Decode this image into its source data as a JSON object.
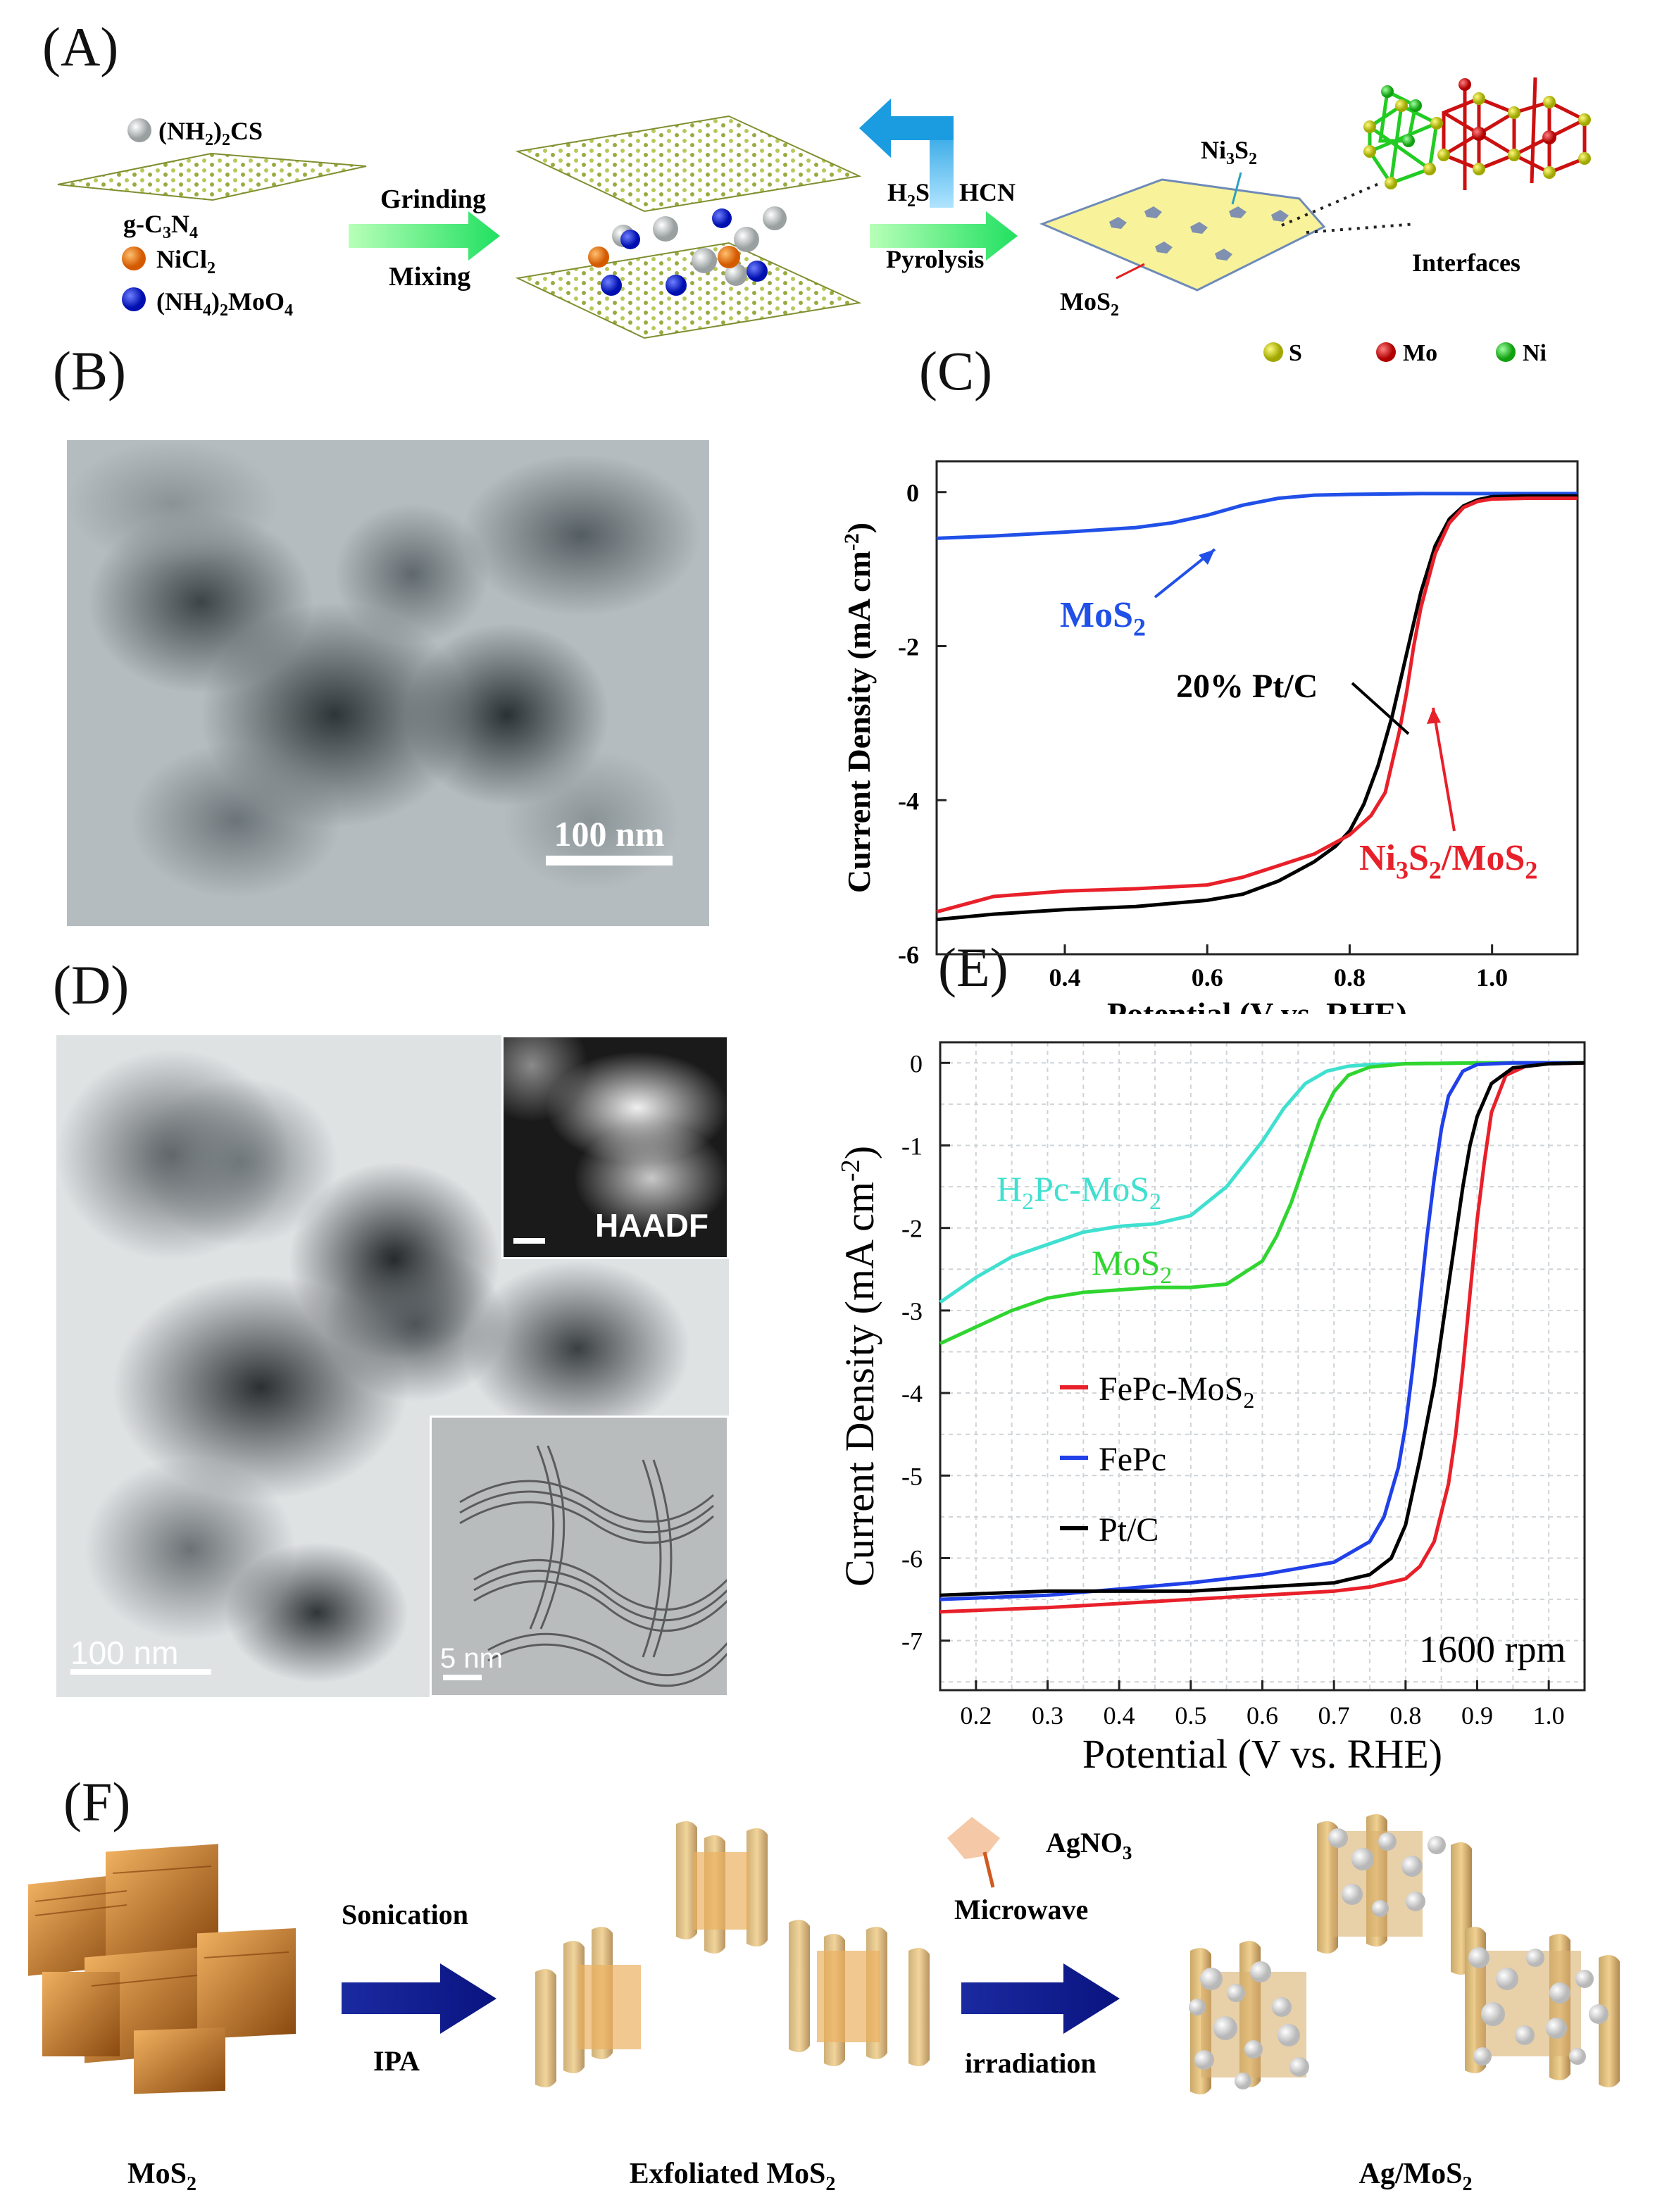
{
  "panels": {
    "A": "(A)",
    "B": "(B)",
    "C": "(C)",
    "D": "(D)",
    "E": "(E)",
    "F": "(F)"
  },
  "panelA": {
    "reagents": [
      "(NH",
      "2",
      ")",
      "2",
      "CS"
    ],
    "gc3n4": [
      "g-C",
      "3",
      "N",
      "4"
    ],
    "nicl2": [
      "NiCl",
      "2"
    ],
    "nh4moo4": [
      "(NH",
      "4",
      ")",
      "2",
      "MoO",
      "4"
    ],
    "step1_top": "Grinding",
    "step1_bottom": "Mixing",
    "h2s": [
      "H",
      "2",
      "S"
    ],
    "hcn": "HCN",
    "step2_bottom": "Pyrolysis",
    "ni3s2": [
      "Ni",
      "3",
      "S",
      "2"
    ],
    "mos2": [
      "MoS",
      "2"
    ],
    "interfaces": "Interfaces",
    "legend": [
      {
        "label": "S",
        "color": "#c8d400"
      },
      {
        "label": "Mo",
        "color": "#d01010"
      },
      {
        "label": "Ni",
        "color": "#22cc22"
      }
    ]
  },
  "panelB": {
    "scalebar": "100 nm"
  },
  "panelC": {
    "xlabel": "Potential (V vs. RHE)",
    "ylabel": "Current Density (mA cm",
    "ylabel_sup": "-2",
    "ylabel_end": ")",
    "labels": {
      "mos2": [
        "MoS",
        "2"
      ],
      "ptc": "20% Pt/C",
      "ni3s2mos2": [
        "Ni",
        "3",
        "S",
        "2",
        "/MoS",
        "2"
      ]
    }
  },
  "panelD": {
    "scalebar_main": "100 nm",
    "scalebar_inset": "5 nm",
    "inset_label": "HAADF"
  },
  "panelE": {
    "xlabel": "Potential (V vs. RHE)",
    "ylabel": "Current Density (mA cm",
    "ylabel_sup": "-2",
    "ylabel_end": ")",
    "rpm": "1600 rpm",
    "labels": {
      "h2pc": [
        "H",
        "2",
        "Pc-MoS",
        "2"
      ],
      "mos2": [
        "MoS",
        "2"
      ]
    },
    "legend": [
      {
        "label": [
          "FePc-MoS",
          "2"
        ],
        "color": "#e8202a"
      },
      {
        "label": [
          "FePc",
          ""
        ],
        "color": "#2040e8"
      },
      {
        "label": [
          "Pt/C",
          ""
        ],
        "color": "#000000"
      }
    ]
  },
  "panelF": {
    "arrow1_top": "Sonication",
    "arrow1_bottom": "IPA",
    "agno3": [
      "AgNO",
      "3"
    ],
    "arrow2_top": "Microwave",
    "arrow2_bottom": "irradiation",
    "captions": [
      [
        "MoS",
        "2"
      ],
      [
        "Exfoliated MoS",
        "2"
      ],
      [
        "Ag/MoS",
        "2"
      ]
    ]
  },
  "chart_data": [
    {
      "type": "line",
      "panel": "C",
      "xlabel": "Potential (V vs. RHE)",
      "ylabel": "Current Density (mA cm-2)",
      "xlim": [
        0.22,
        1.12
      ],
      "ylim": [
        -6,
        0.4
      ],
      "xticks": [
        0.4,
        0.6,
        0.8,
        1.0
      ],
      "yticks": [
        0,
        -2,
        -4,
        -6
      ],
      "series": [
        {
          "name": "MoS2",
          "color": "#2050e8",
          "x": [
            0.22,
            0.3,
            0.4,
            0.5,
            0.55,
            0.6,
            0.65,
            0.7,
            0.75,
            0.8,
            0.9,
            1.0,
            1.12
          ],
          "y": [
            -0.6,
            -0.57,
            -0.52,
            -0.46,
            -0.4,
            -0.3,
            -0.17,
            -0.08,
            -0.04,
            -0.03,
            -0.02,
            -0.02,
            -0.02
          ]
        },
        {
          "name": "20% Pt/C",
          "color": "#000000",
          "x": [
            0.22,
            0.3,
            0.4,
            0.5,
            0.6,
            0.65,
            0.7,
            0.72,
            0.75,
            0.78,
            0.8,
            0.82,
            0.84,
            0.86,
            0.88,
            0.9,
            0.92,
            0.94,
            0.96,
            0.98,
            1.0,
            1.05,
            1.12
          ],
          "y": [
            -5.55,
            -5.48,
            -5.42,
            -5.38,
            -5.3,
            -5.22,
            -5.05,
            -4.95,
            -4.8,
            -4.6,
            -4.4,
            -4.05,
            -3.55,
            -2.9,
            -2.1,
            -1.3,
            -0.7,
            -0.35,
            -0.18,
            -0.1,
            -0.06,
            -0.05,
            -0.05
          ]
        },
        {
          "name": "Ni3S2/MoS2",
          "color": "#e8202a",
          "x": [
            0.22,
            0.3,
            0.4,
            0.5,
            0.6,
            0.65,
            0.7,
            0.75,
            0.8,
            0.83,
            0.85,
            0.86,
            0.87,
            0.88,
            0.89,
            0.9,
            0.92,
            0.94,
            0.96,
            0.98,
            1.0,
            1.05,
            1.12
          ],
          "y": [
            -5.45,
            -5.25,
            -5.18,
            -5.15,
            -5.1,
            -5.0,
            -4.85,
            -4.7,
            -4.45,
            -4.2,
            -3.9,
            -3.5,
            -3.1,
            -2.6,
            -2.0,
            -1.5,
            -0.8,
            -0.4,
            -0.2,
            -0.12,
            -0.09,
            -0.08,
            -0.08
          ]
        }
      ]
    },
    {
      "type": "line",
      "panel": "E",
      "xlabel": "Potential (V vs. RHE)",
      "ylabel": "Current Density (mA cm-2)",
      "xlim": [
        0.15,
        1.05
      ],
      "ylim": [
        -7.6,
        0.25
      ],
      "xticks": [
        0.2,
        0.3,
        0.4,
        0.5,
        0.6,
        0.7,
        0.8,
        0.9,
        1.0
      ],
      "yticks": [
        0,
        -1,
        -2,
        -3,
        -4,
        -5,
        -6,
        -7
      ],
      "series": [
        {
          "name": "H2Pc-MoS2",
          "color": "#40e0d0",
          "x": [
            0.15,
            0.2,
            0.25,
            0.3,
            0.35,
            0.4,
            0.45,
            0.5,
            0.55,
            0.6,
            0.63,
            0.66,
            0.69,
            0.72,
            0.75,
            0.8,
            0.9,
            1.0,
            1.05
          ],
          "y": [
            -2.9,
            -2.6,
            -2.35,
            -2.2,
            -2.05,
            -1.98,
            -1.95,
            -1.85,
            -1.5,
            -0.95,
            -0.55,
            -0.25,
            -0.1,
            -0.04,
            -0.02,
            -0.01,
            0,
            0,
            0
          ]
        },
        {
          "name": "MoS2",
          "color": "#30d530",
          "x": [
            0.15,
            0.2,
            0.25,
            0.3,
            0.35,
            0.4,
            0.45,
            0.5,
            0.55,
            0.6,
            0.62,
            0.64,
            0.66,
            0.68,
            0.7,
            0.72,
            0.75,
            0.8,
            0.9,
            1.0,
            1.05
          ],
          "y": [
            -3.4,
            -3.2,
            -3.0,
            -2.85,
            -2.78,
            -2.75,
            -2.72,
            -2.72,
            -2.68,
            -2.4,
            -2.1,
            -1.7,
            -1.2,
            -0.7,
            -0.35,
            -0.15,
            -0.05,
            -0.01,
            0,
            0,
            0
          ]
        },
        {
          "name": "FePc-MoS2",
          "color": "#e8202a",
          "x": [
            0.15,
            0.3,
            0.5,
            0.7,
            0.75,
            0.8,
            0.82,
            0.84,
            0.86,
            0.87,
            0.88,
            0.89,
            0.9,
            0.91,
            0.92,
            0.94,
            0.97,
            1.0,
            1.05
          ],
          "y": [
            -6.65,
            -6.6,
            -6.5,
            -6.4,
            -6.35,
            -6.25,
            -6.1,
            -5.8,
            -5.1,
            -4.5,
            -3.7,
            -2.8,
            -1.9,
            -1.2,
            -0.6,
            -0.15,
            -0.03,
            -0.01,
            0
          ]
        },
        {
          "name": "FePc",
          "color": "#2040e8",
          "x": [
            0.15,
            0.3,
            0.5,
            0.6,
            0.7,
            0.75,
            0.77,
            0.79,
            0.8,
            0.81,
            0.82,
            0.83,
            0.84,
            0.85,
            0.86,
            0.88,
            0.9,
            0.95,
            1.05
          ],
          "y": [
            -6.5,
            -6.45,
            -6.3,
            -6.2,
            -6.05,
            -5.8,
            -5.5,
            -4.9,
            -4.4,
            -3.7,
            -2.9,
            -2.1,
            -1.4,
            -0.8,
            -0.4,
            -0.1,
            -0.02,
            0,
            0
          ]
        },
        {
          "name": "Pt/C",
          "color": "#000000",
          "x": [
            0.15,
            0.3,
            0.5,
            0.7,
            0.75,
            0.78,
            0.8,
            0.82,
            0.84,
            0.85,
            0.86,
            0.87,
            0.88,
            0.89,
            0.9,
            0.92,
            0.95,
            1.0,
            1.05
          ],
          "y": [
            -6.45,
            -6.4,
            -6.4,
            -6.3,
            -6.2,
            -6.0,
            -5.6,
            -4.8,
            -3.9,
            -3.3,
            -2.7,
            -2.1,
            -1.5,
            -1.0,
            -0.65,
            -0.25,
            -0.06,
            -0.01,
            0
          ]
        }
      ]
    }
  ]
}
